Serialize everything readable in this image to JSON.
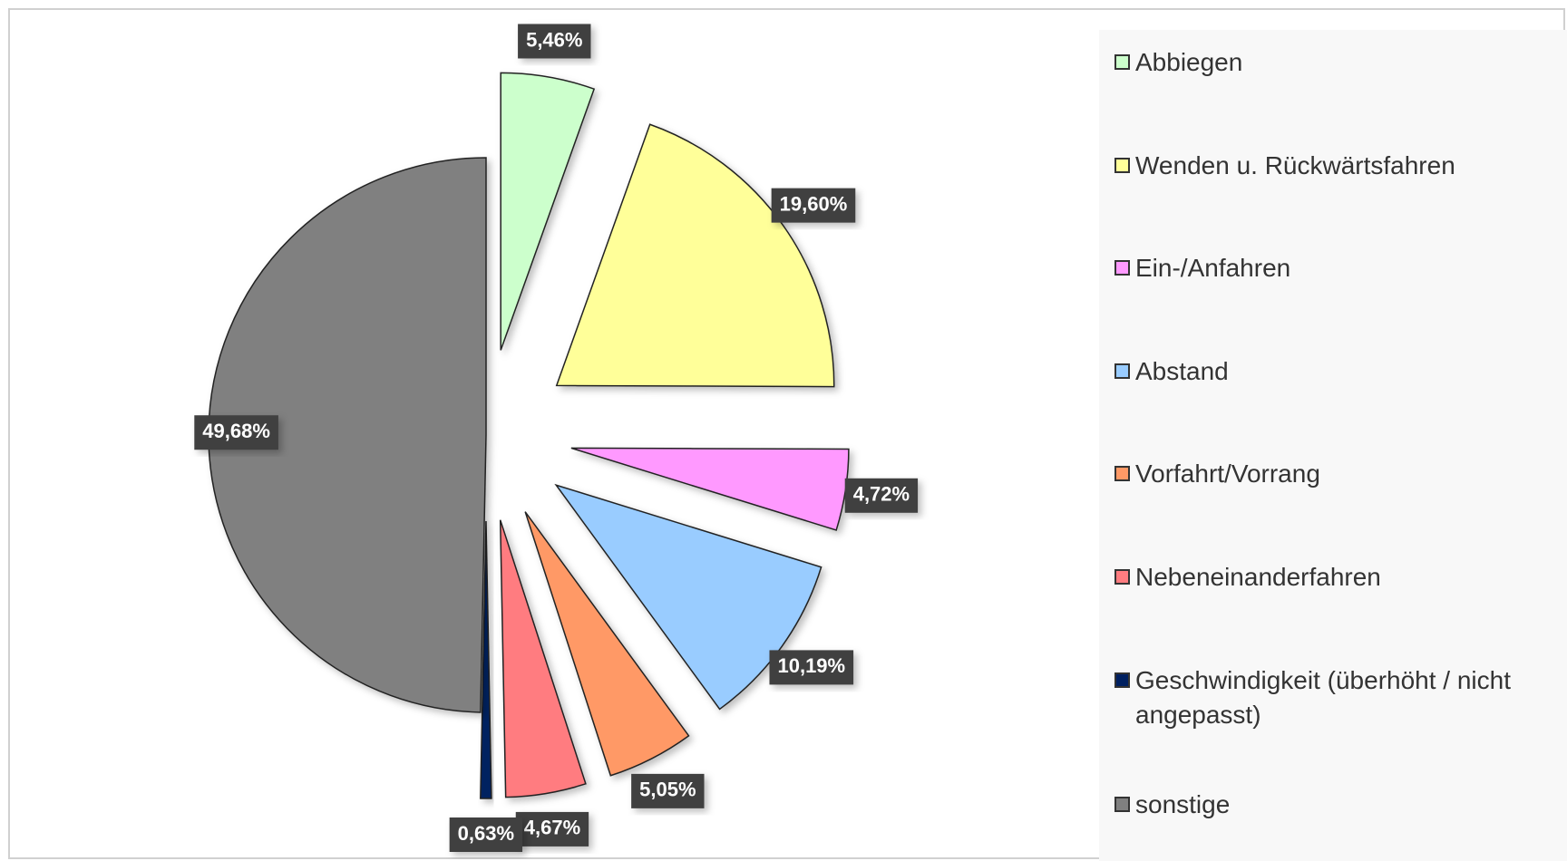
{
  "chart_data": {
    "type": "pie",
    "categories": [
      "Abbiegen",
      "Wenden u. Rückwärtsfahren",
      "Ein-/Anfahren",
      "Abstand",
      "Vorfahrt/Vorrang",
      "Nebeneinanderfahren",
      "Geschwindigkeit (überhöht / nicht angepasst)",
      "sonstige"
    ],
    "values": [
      5.46,
      19.6,
      4.72,
      10.19,
      5.05,
      4.67,
      0.63,
      49.68
    ],
    "value_labels": [
      "5,46%",
      "19,60%",
      "4,72%",
      "10,19%",
      "5,05%",
      "4,67%",
      "0,63%",
      "49,68%"
    ],
    "colors": [
      "#ccffcc",
      "#ffff99",
      "#ff99ff",
      "#99ccff",
      "#ff9966",
      "#ff7c80",
      "#002060",
      "#808080"
    ],
    "legend": "right"
  }
}
